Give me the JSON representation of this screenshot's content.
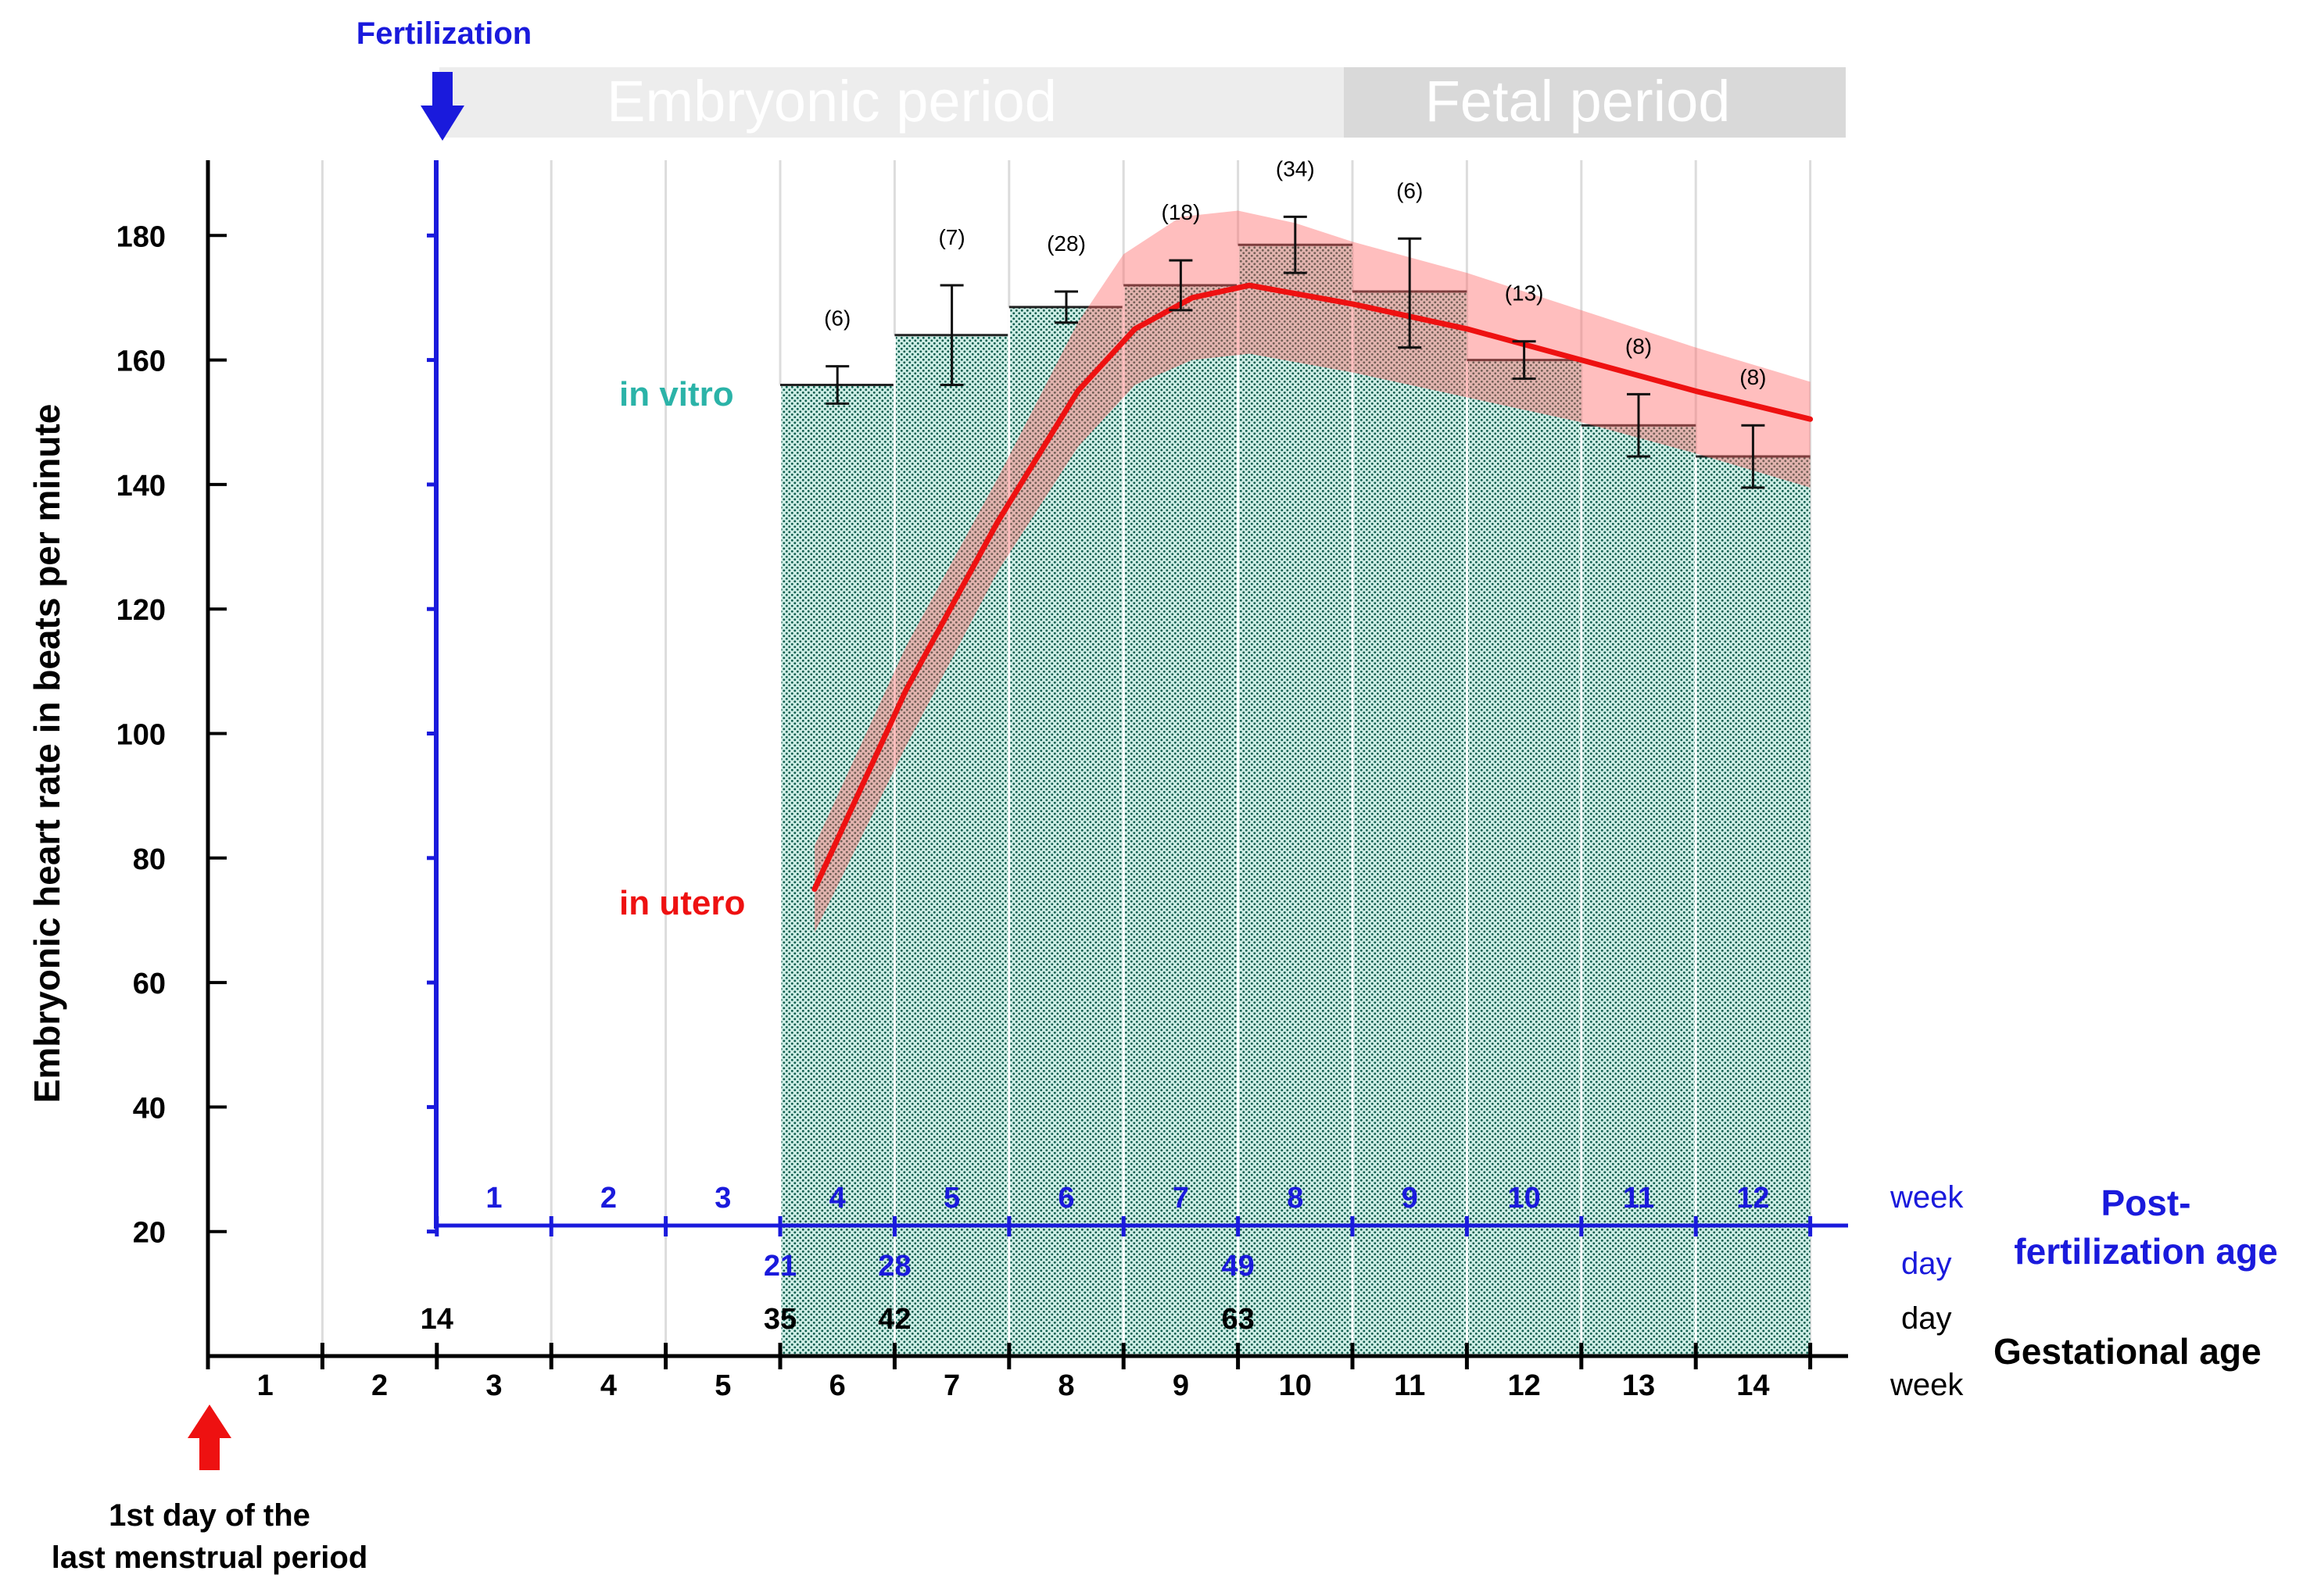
{
  "chart_data": {
    "type": "bar",
    "ylabel": "Embryonic heart rate in beats per minute",
    "ylim": [
      0,
      190
    ],
    "y_ticks": [
      20,
      40,
      60,
      80,
      100,
      120,
      140,
      160,
      180
    ],
    "period_labels": {
      "embryonic": "Embryonic period",
      "fetal": "Fetal period"
    },
    "fertilization_label": "Fertilization",
    "lmp_label_line1": "1st day of the",
    "lmp_label_line2": "last menstrual period",
    "post_fert_label_line1": "Post-",
    "post_fert_label_line2": "fertilization age",
    "gestational_label": "Gestational age",
    "unit_week": "week",
    "unit_day": "day",
    "gestational_weeks": [
      "1",
      "2",
      "3",
      "4",
      "5",
      "6",
      "7",
      "8",
      "9",
      "10",
      "11",
      "12",
      "13",
      "14"
    ],
    "post_fertilization_weeks": [
      "1",
      "2",
      "3",
      "4",
      "5",
      "6",
      "7",
      "8",
      "9",
      "10",
      "11",
      "12"
    ],
    "post_fertilization_days": [
      {
        "week_pos": 5.0,
        "label": "21"
      },
      {
        "week_pos": 6.0,
        "label": "28"
      },
      {
        "week_pos": 9.0,
        "label": "49"
      }
    ],
    "gestational_days": [
      {
        "week_pos": 2.0,
        "label": "14"
      },
      {
        "week_pos": 5.0,
        "label": "35"
      },
      {
        "week_pos": 6.0,
        "label": "42"
      },
      {
        "week_pos": 9.0,
        "label": "63"
      }
    ],
    "series": [
      {
        "name": "in vitro",
        "color": "#2bb3a8",
        "bars": [
          {
            "gest_week": 6,
            "value": 156,
            "err_low": 153,
            "err_high": 159,
            "n": "(6)"
          },
          {
            "gest_week": 7,
            "value": 164,
            "err_low": 156,
            "err_high": 172,
            "n": "(7)"
          },
          {
            "gest_week": 8,
            "value": 168.5,
            "err_low": 166,
            "err_high": 171,
            "n": "(28)"
          },
          {
            "gest_week": 9,
            "value": 172,
            "err_low": 168,
            "err_high": 176,
            "n": "(18)"
          },
          {
            "gest_week": 10,
            "value": 178.5,
            "err_low": 174,
            "err_high": 183,
            "n": "(34)"
          },
          {
            "gest_week": 11,
            "value": 171,
            "err_low": 162,
            "err_high": 179.5,
            "n": "(6)"
          },
          {
            "gest_week": 12,
            "value": 160,
            "err_low": 157,
            "err_high": 163,
            "n": "(13)"
          },
          {
            "gest_week": 13,
            "value": 149.5,
            "err_low": 144.5,
            "err_high": 154.5,
            "n": "(8)"
          },
          {
            "gest_week": 14,
            "value": 144.5,
            "err_low": 139.5,
            "err_high": 149.5,
            "n": "(8)"
          }
        ]
      },
      {
        "name": "in utero",
        "color": "#ee1111",
        "points": [
          {
            "x": 5.3,
            "y": 75
          },
          {
            "x": 6.1,
            "y": 107
          },
          {
            "x": 6.9,
            "y": 134
          },
          {
            "x": 7.6,
            "y": 155
          },
          {
            "x": 8.1,
            "y": 165
          },
          {
            "x": 8.6,
            "y": 170
          },
          {
            "x": 9.1,
            "y": 172
          },
          {
            "x": 10.0,
            "y": 169
          },
          {
            "x": 11.0,
            "y": 165
          },
          {
            "x": 12.0,
            "y": 160
          },
          {
            "x": 13.0,
            "y": 155
          },
          {
            "x": 14.0,
            "y": 150.5
          }
        ],
        "band_upper": [
          {
            "x": 5.3,
            "y": 82
          },
          {
            "x": 6.1,
            "y": 114
          },
          {
            "x": 6.9,
            "y": 141
          },
          {
            "x": 7.6,
            "y": 166
          },
          {
            "x": 8.0,
            "y": 177
          },
          {
            "x": 8.5,
            "y": 183
          },
          {
            "x": 9.0,
            "y": 184
          },
          {
            "x": 9.5,
            "y": 182
          },
          {
            "x": 10.0,
            "y": 179
          },
          {
            "x": 11.0,
            "y": 174
          },
          {
            "x": 12.0,
            "y": 168
          },
          {
            "x": 13.0,
            "y": 162
          },
          {
            "x": 14.0,
            "y": 156.5
          }
        ],
        "band_lower": [
          {
            "x": 5.3,
            "y": 68
          },
          {
            "x": 6.1,
            "y": 98
          },
          {
            "x": 6.9,
            "y": 126
          },
          {
            "x": 7.6,
            "y": 146
          },
          {
            "x": 8.1,
            "y": 156
          },
          {
            "x": 8.6,
            "y": 160
          },
          {
            "x": 9.1,
            "y": 161
          },
          {
            "x": 10.0,
            "y": 158
          },
          {
            "x": 11.0,
            "y": 154
          },
          {
            "x": 12.0,
            "y": 150
          },
          {
            "x": 13.0,
            "y": 145
          },
          {
            "x": 14.0,
            "y": 139.5
          }
        ]
      }
    ]
  }
}
